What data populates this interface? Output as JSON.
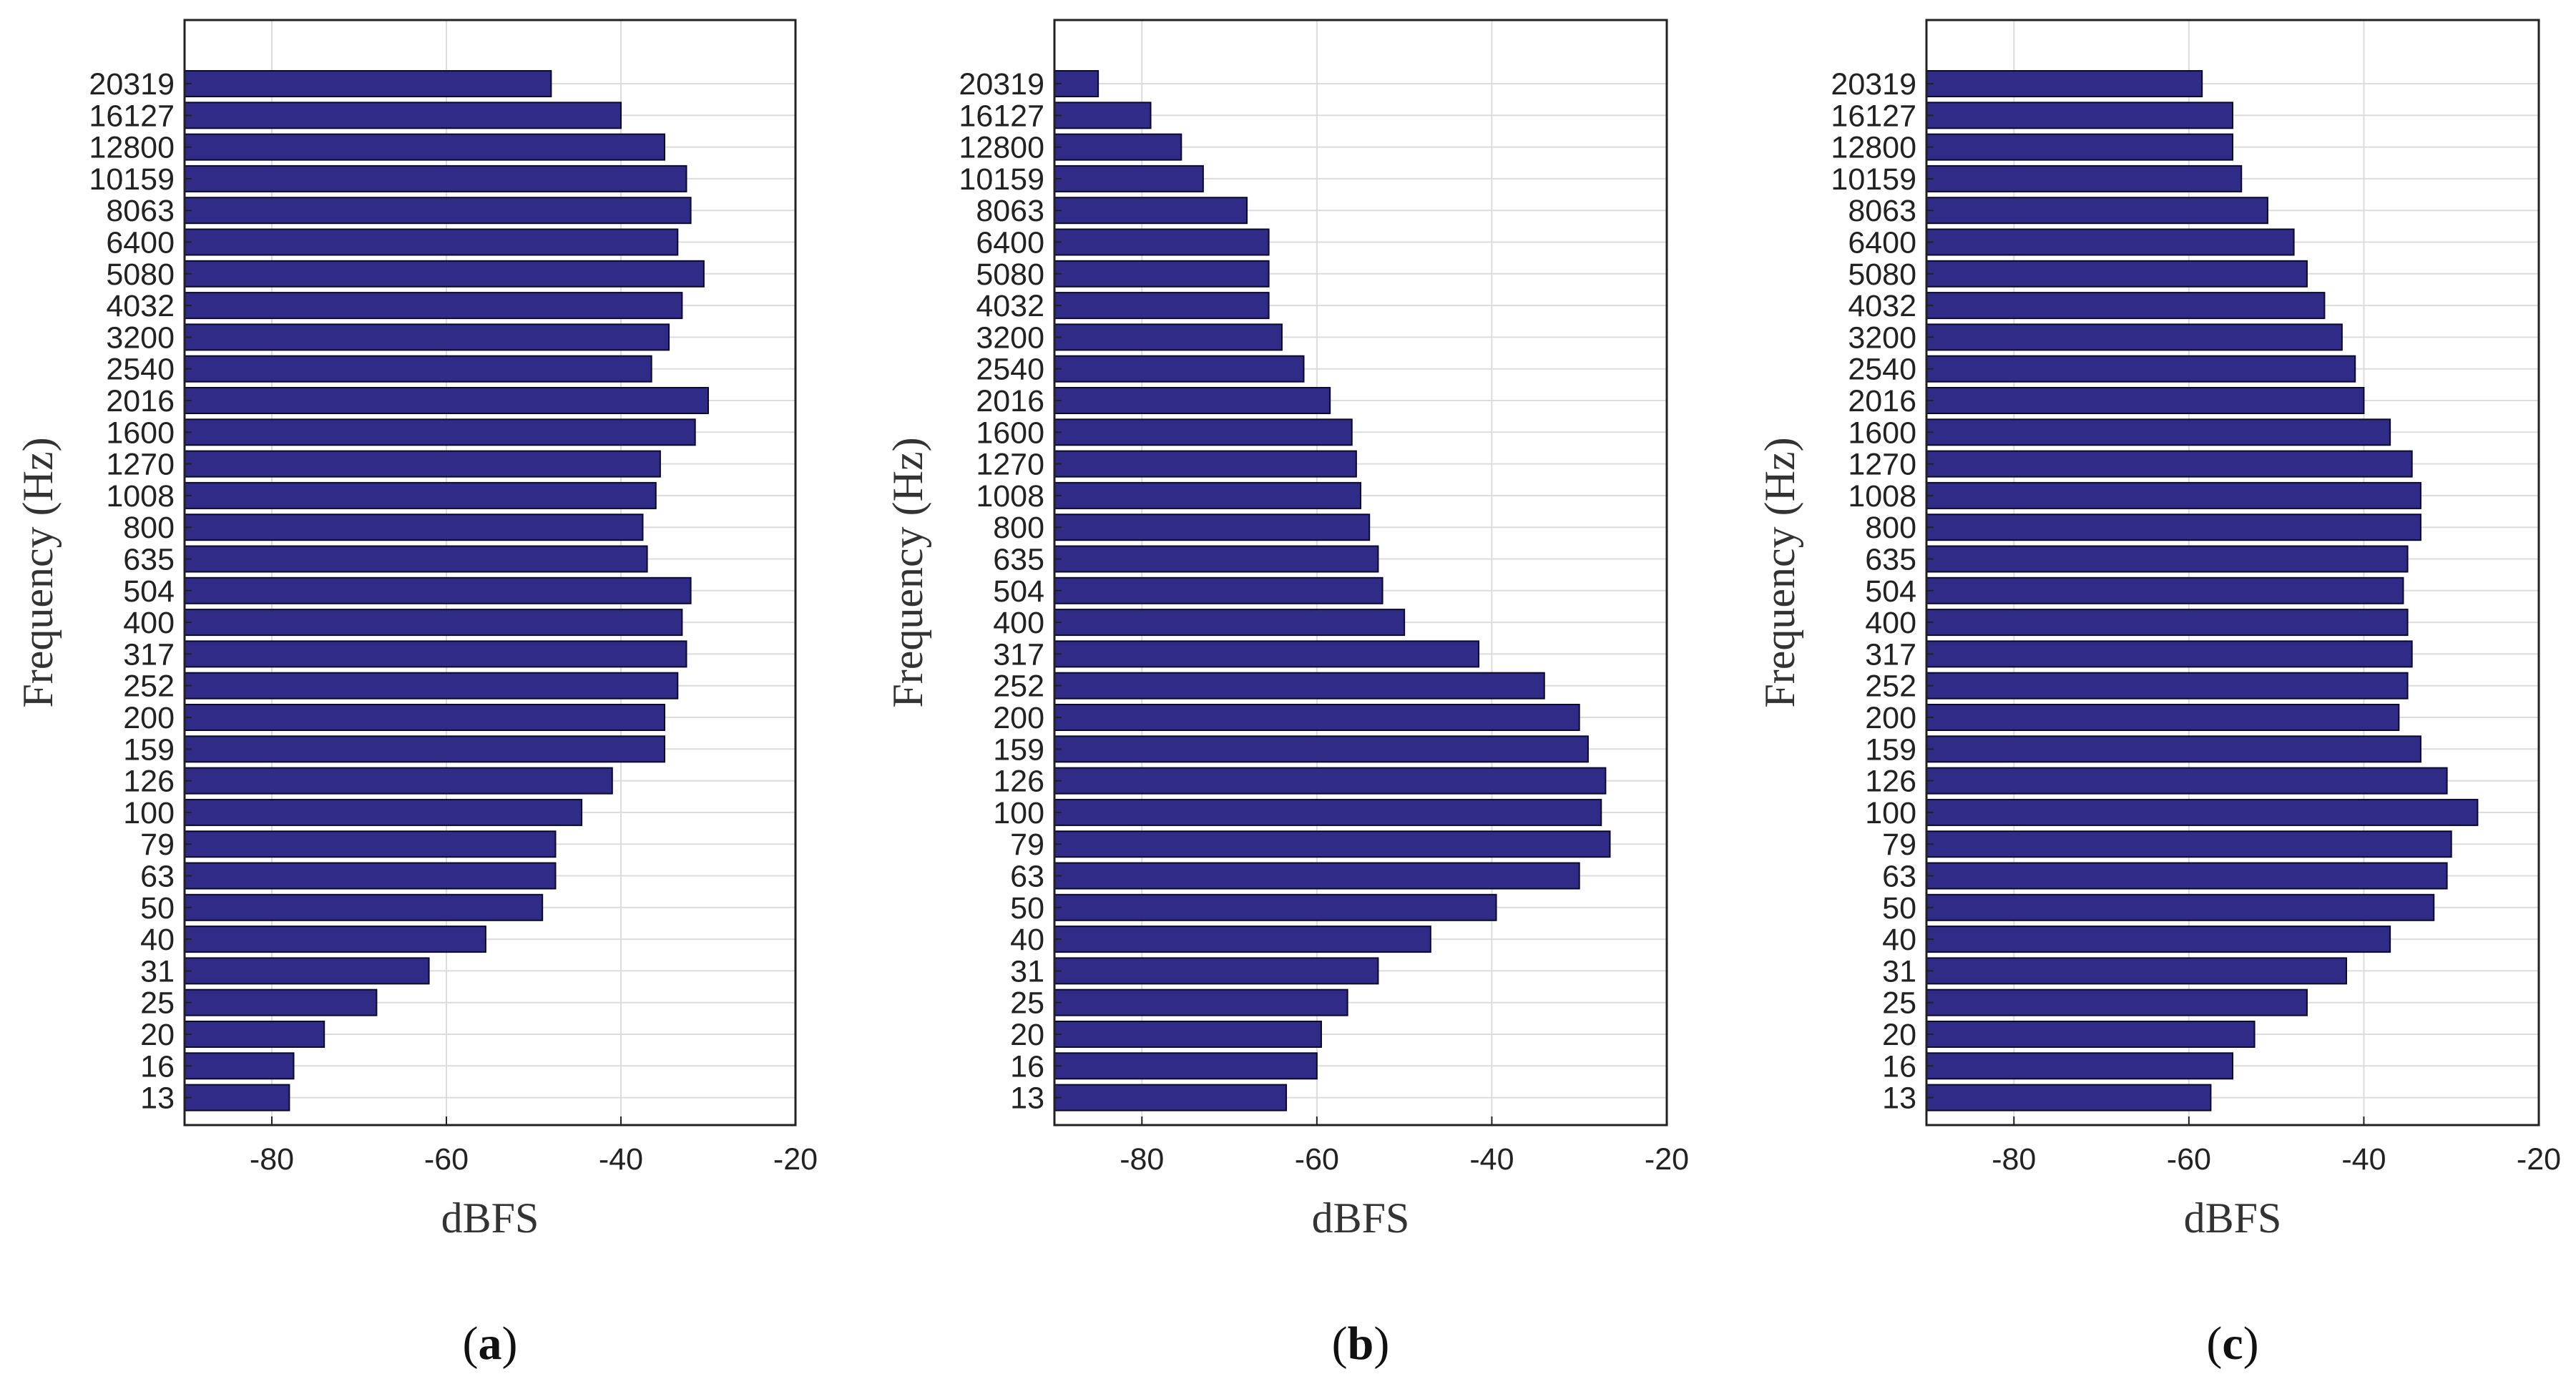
{
  "chart_data": [
    {
      "type": "bar",
      "orientation": "horizontal",
      "label": "a",
      "xlabel": "dBFS",
      "ylabel": "Frequency (Hz)",
      "xlim": [
        -90,
        -20
      ],
      "xticks": [
        "-80",
        "-60",
        "-40",
        "-20"
      ],
      "grid": true,
      "bar_color": "#302b87",
      "categories": [
        "20319",
        "16127",
        "12800",
        "10159",
        "8063",
        "6400",
        "5080",
        "4032",
        "3200",
        "2540",
        "2016",
        "1600",
        "1270",
        "1008",
        "800",
        "635",
        "504",
        "400",
        "317",
        "252",
        "200",
        "159",
        "126",
        "100",
        "79",
        "63",
        "50",
        "40",
        "31",
        "25",
        "20",
        "16",
        "13"
      ],
      "values": [
        -48,
        -40,
        -35,
        -32.5,
        -32,
        -33.5,
        -30.5,
        -33,
        -34.5,
        -36.5,
        -30,
        -31.5,
        -35.5,
        -36,
        -37.5,
        -37,
        -32,
        -33,
        -32.5,
        -33.5,
        -35,
        -35,
        -41,
        -44.5,
        -47.5,
        -47.5,
        -49,
        -55.5,
        -62,
        -68,
        -74,
        -77.5,
        -78
      ]
    },
    {
      "type": "bar",
      "orientation": "horizontal",
      "label": "b",
      "xlabel": "dBFS",
      "ylabel": "Frequency (Hz)",
      "xlim": [
        -90,
        -20
      ],
      "xticks": [
        "-80",
        "-60",
        "-40",
        "-20"
      ],
      "grid": true,
      "bar_color": "#302b87",
      "categories": [
        "20319",
        "16127",
        "12800",
        "10159",
        "8063",
        "6400",
        "5080",
        "4032",
        "3200",
        "2540",
        "2016",
        "1600",
        "1270",
        "1008",
        "800",
        "635",
        "504",
        "400",
        "317",
        "252",
        "200",
        "159",
        "126",
        "100",
        "79",
        "63",
        "50",
        "40",
        "31",
        "25",
        "20",
        "16",
        "13"
      ],
      "values": [
        -85,
        -79,
        -75.5,
        -73,
        -68,
        -65.5,
        -65.5,
        -65.5,
        -64,
        -61.5,
        -58.5,
        -56,
        -55.5,
        -55,
        -54,
        -53,
        -52.5,
        -50,
        -41.5,
        -34,
        -30,
        -29,
        -27,
        -27.5,
        -26.5,
        -30,
        -39.5,
        -47,
        -53,
        -56.5,
        -59.5,
        -60,
        -63.5
      ]
    },
    {
      "type": "bar",
      "orientation": "horizontal",
      "label": "c",
      "xlabel": "dBFS",
      "ylabel": "Frequency (Hz)",
      "xlim": [
        -90,
        -20
      ],
      "xticks": [
        "-80",
        "-60",
        "-40",
        "-20"
      ],
      "grid": true,
      "bar_color": "#302b87",
      "categories": [
        "20319",
        "16127",
        "12800",
        "10159",
        "8063",
        "6400",
        "5080",
        "4032",
        "3200",
        "2540",
        "2016",
        "1600",
        "1270",
        "1008",
        "800",
        "635",
        "504",
        "400",
        "317",
        "252",
        "200",
        "159",
        "126",
        "100",
        "79",
        "63",
        "50",
        "40",
        "31",
        "25",
        "20",
        "16",
        "13"
      ],
      "values": [
        -58.5,
        -55,
        -55,
        -54,
        -51,
        -48,
        -46.5,
        -44.5,
        -42.5,
        -41,
        -40,
        -37,
        -34.5,
        -33.5,
        -33.5,
        -35,
        -35.5,
        -35,
        -34.5,
        -35,
        -36,
        -33.5,
        -30.5,
        -27,
        -30,
        -30.5,
        -32,
        -37,
        -42,
        -46.5,
        -52.5,
        -55,
        -57.5
      ]
    }
  ]
}
